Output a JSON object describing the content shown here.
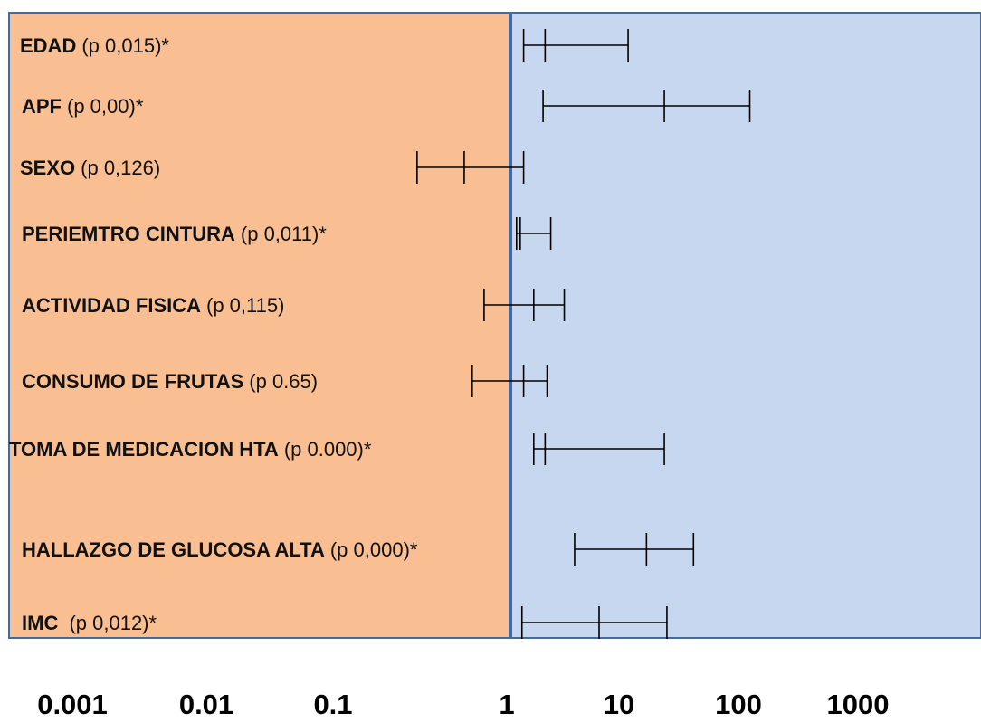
{
  "chart_data": {
    "type": "forest",
    "scale": "log",
    "xlim": [
      0.001,
      1000
    ],
    "reference_value": 1,
    "x_ticks": [
      "0.001",
      "0.01",
      "0.1",
      "1",
      "10",
      "100",
      "1000"
    ],
    "x_tick_values": [
      0.001,
      0.01,
      0.1,
      1,
      10,
      100,
      1000
    ],
    "colors": {
      "left_region": "#f9bf93",
      "right_region": "#c7d7ef",
      "border": "#4169a3",
      "lines": "#000000"
    },
    "rows": [
      {
        "name": "EDAD",
        "pval": "(p 0,015)*",
        "lower": 1.35,
        "estimate": 2.2,
        "upper": 14.5
      },
      {
        "name": "APF",
        "pval": "(p 0,00)*",
        "lower": 2.1,
        "estimate": 33,
        "upper": 230
      },
      {
        "name": "SEXO",
        "pval": "(p 0,126)",
        "lower": 0.12,
        "estimate": 0.35,
        "upper": 1.35
      },
      {
        "name": "PERIEMTRO CINTURA",
        "pval": "(p 0,011)*",
        "lower": 1.15,
        "estimate": 1.25,
        "upper": 2.5
      },
      {
        "name": "ACTIVIDAD  FISICA",
        "pval": "(p 0,115)",
        "lower": 0.55,
        "estimate": 1.7,
        "upper": 3.4
      },
      {
        "name": "CONSUMO DE FRUTAS",
        "pval": "(p 0.65)",
        "lower": 0.42,
        "estimate": 1.35,
        "upper": 2.3
      },
      {
        "name": "TOMA DE MEDICACION HTA",
        "pval": "(p 0.000)*",
        "lower": 1.7,
        "estimate": 2.2,
        "upper": 33
      },
      {
        "name": "HALLAZGO DE GLUCOSA ALTA",
        "pval": "(p 0,000)*",
        "lower": 4.3,
        "estimate": 22,
        "upper": 64
      },
      {
        "name": "IMC ",
        "pval": "(p 0,012)*",
        "lower": 1.3,
        "estimate": 7.5,
        "upper": 35
      }
    ]
  }
}
